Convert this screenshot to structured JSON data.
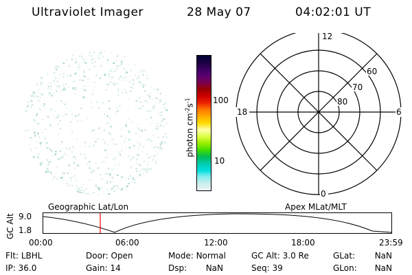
{
  "header": {
    "title": "Ultraviolet Imager",
    "date": "28 May 07",
    "time": "04:02:01 UT"
  },
  "colorbar": {
    "label": "photon cm",
    "label_exp1": "-2",
    "label_mid": "s",
    "label_exp2": "-1",
    "ticks": [
      "100",
      "10"
    ],
    "colors": [
      "#000033",
      "#1a0040",
      "#3a0060",
      "#5a0070",
      "#7a0050",
      "#990000",
      "#cc0000",
      "#ee2200",
      "#ff7700",
      "#ffaa00",
      "#ffdd00",
      "#ffffaa",
      "#ddff44",
      "#99ee00",
      "#44dd00",
      "#00bb55",
      "#00ccaa",
      "#00dddd",
      "#88eeee",
      "#cceeee",
      "#eef5f5"
    ]
  },
  "polar_plot": {
    "mlt_labels": {
      "top": "12",
      "left": "18",
      "right": "6",
      "bottom": "0"
    },
    "lat_labels": [
      "60",
      "70",
      "80"
    ]
  },
  "altitude_plot": {
    "left_caption": "Geographic Lat/Lon",
    "right_caption": "Apex MLat/MLT",
    "ylabel": "GC Alt",
    "yticks": [
      "9.0",
      "1.8"
    ],
    "xticks": [
      "00:00",
      "06:00",
      "12:00",
      "18:00",
      "23:59"
    ]
  },
  "status": {
    "row1": [
      {
        "key": "Flt:",
        "value": "LBHL"
      },
      {
        "key": "Door:",
        "value": "Open"
      },
      {
        "key": "Mode:",
        "value": "Normal"
      },
      {
        "key": "GC Alt:",
        "value": "3.0 Re"
      },
      {
        "key": "GLat:",
        "value": "NaN"
      }
    ],
    "row2": [
      {
        "key": "IP:",
        "value": "36.0"
      },
      {
        "key": "Gain:",
        "value": "14"
      },
      {
        "key": "Dsp:",
        "value": "NaN"
      },
      {
        "key": "Seq:",
        "value": "39"
      },
      {
        "key": "GLon:",
        "value": "NaN"
      }
    ]
  }
}
